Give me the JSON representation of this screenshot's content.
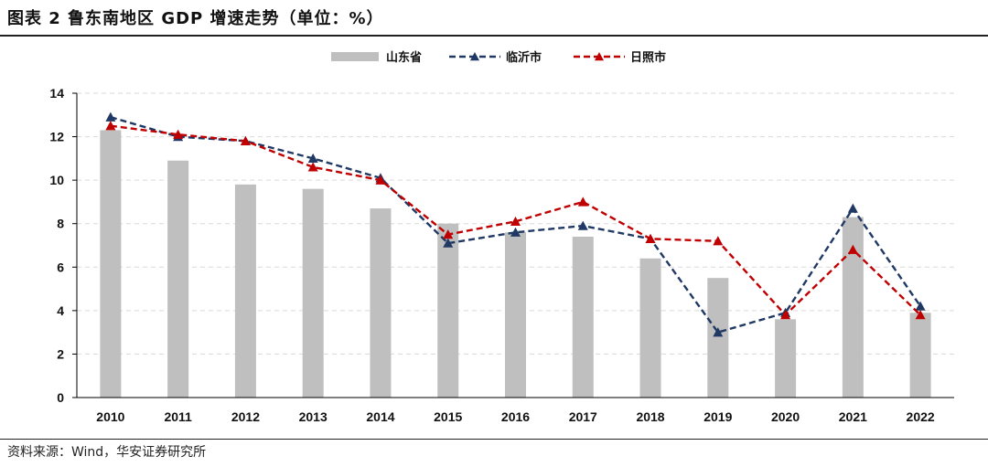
{
  "header": {
    "title": "图表 2 鲁东南地区 GDP 增速走势（单位：%）"
  },
  "footer": {
    "source": "资料来源：Wind，华安证券研究所"
  },
  "colors": {
    "bar": "#bfbfbf",
    "linyi": "#1f3864",
    "rizhao": "#c00000",
    "grid": "#d9d9d9",
    "axis": "#000000"
  },
  "chart_data": {
    "type": "bar+line",
    "categories": [
      "2010",
      "2011",
      "2012",
      "2013",
      "2014",
      "2015",
      "2016",
      "2017",
      "2018",
      "2019",
      "2020",
      "2021",
      "2022"
    ],
    "ylim": [
      0,
      14
    ],
    "yticks": [
      0,
      2,
      4,
      6,
      8,
      10,
      12,
      14
    ],
    "grid": true,
    "legend_position": "top-center",
    "series": [
      {
        "name": "山东省",
        "kind": "bar",
        "values": [
          12.3,
          10.9,
          9.8,
          9.6,
          8.7,
          8.0,
          7.6,
          7.4,
          6.4,
          5.5,
          3.6,
          8.3,
          3.9
        ]
      },
      {
        "name": "临沂市",
        "kind": "line",
        "values": [
          12.9,
          12.0,
          11.8,
          11.0,
          10.1,
          7.1,
          7.6,
          7.9,
          7.3,
          3.0,
          3.9,
          8.7,
          4.2
        ]
      },
      {
        "name": "日照市",
        "kind": "line",
        "values": [
          12.5,
          12.1,
          11.8,
          10.6,
          10.0,
          7.5,
          8.1,
          9.0,
          7.3,
          7.2,
          3.8,
          6.8,
          3.8
        ]
      }
    ]
  }
}
